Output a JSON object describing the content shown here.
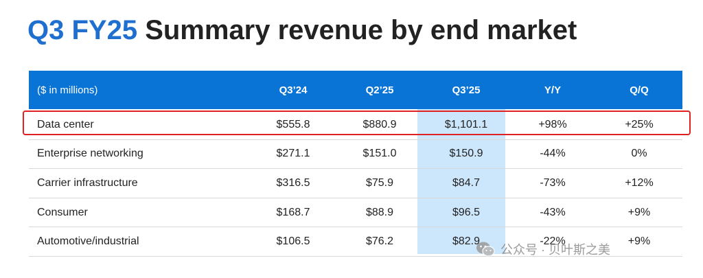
{
  "title": {
    "accent": "Q3 FY25",
    "rest": " Summary revenue by end market"
  },
  "table": {
    "columns": [
      "($ in millions)",
      "Q3’24",
      "Q2’25",
      "Q3’25",
      "Y/Y",
      "Q/Q"
    ],
    "rows": [
      {
        "label": "Data center",
        "q3_24": "$555.8",
        "q2_25": "$880.9",
        "q3_25": "$1,101.1",
        "yy": "+98%",
        "qq": "+25%"
      },
      {
        "label": "Enterprise networking",
        "q3_24": "$271.1",
        "q2_25": "$151.0",
        "q3_25": "$150.9",
        "yy": "-44%",
        "qq": "0%"
      },
      {
        "label": "Carrier infrastructure",
        "q3_24": "$316.5",
        "q2_25": "$75.9",
        "q3_25": "$84.7",
        "yy": "-73%",
        "qq": "+12%"
      },
      {
        "label": "Consumer",
        "q3_24": "$168.7",
        "q2_25": "$88.9",
        "q3_25": "$96.5",
        "yy": "-43%",
        "qq": "+9%"
      },
      {
        "label": "Automotive/industrial",
        "q3_24": "$106.5",
        "q2_25": "$76.2",
        "q3_25": "$82.9",
        "yy": "-22%",
        "qq": "+9%"
      }
    ]
  },
  "watermark": {
    "text": "公众号 · 贝叶斯之美",
    "icon": "wechat-icon"
  },
  "colors": {
    "accent": "#1f6fd0",
    "header_bg": "#0a74d6",
    "highlight_col": "#cce6fb",
    "highlight_box": "#e02020"
  }
}
